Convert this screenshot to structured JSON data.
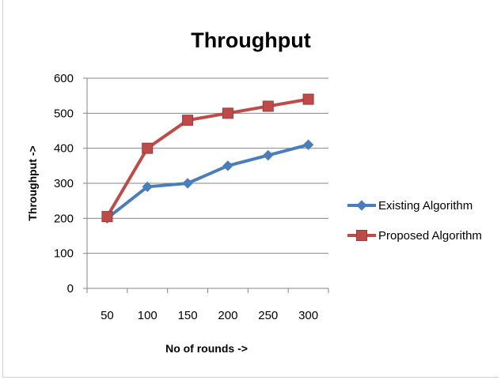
{
  "chart_data": {
    "type": "line",
    "title": "Throughput",
    "xlabel": "No of rounds ->",
    "ylabel": "Throughput ->",
    "categories": [
      "50",
      "100",
      "150",
      "200",
      "250",
      "300"
    ],
    "yticks": [
      "0",
      "100",
      "200",
      "300",
      "400",
      "500",
      "600"
    ],
    "ylim": [
      0,
      600
    ],
    "grid": "horizontal",
    "legend_position": "right",
    "series": [
      {
        "name": "Existing Algorithm",
        "values": [
          200,
          290,
          300,
          350,
          380,
          410
        ],
        "color": "#4a7ebb",
        "marker": "diamond"
      },
      {
        "name": "Proposed Algorithm",
        "values": [
          205,
          400,
          480,
          500,
          520,
          540
        ],
        "color": "#be4b48",
        "marker": "square"
      }
    ]
  }
}
